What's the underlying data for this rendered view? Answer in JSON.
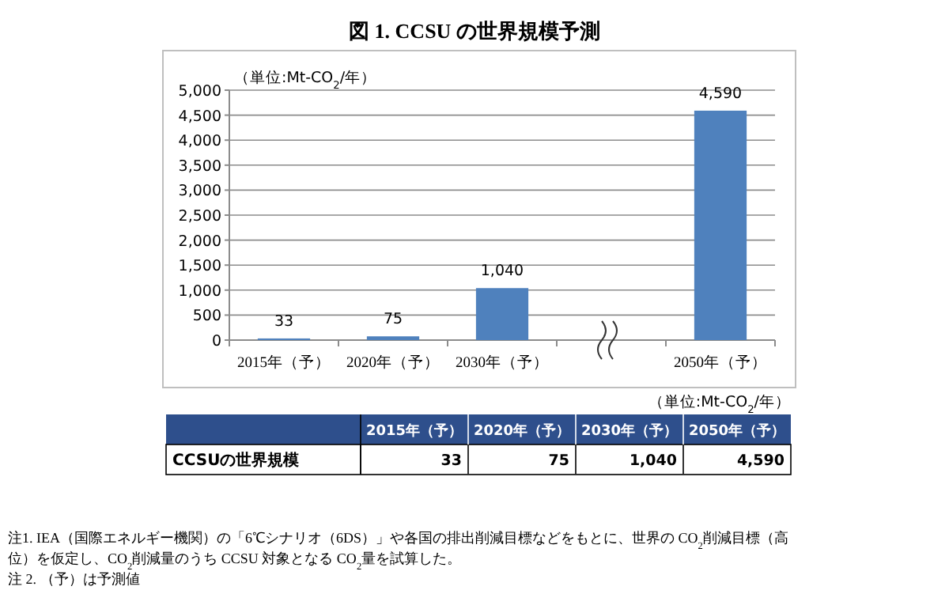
{
  "chart_data": {
    "type": "bar",
    "title": "図 1. CCSU の世界規模予測",
    "ylabel": "（単位:Mt-CO$_{2}$/年）",
    "categories": [
      "2015年（予）",
      "2020年（予）",
      "2030年（予）",
      null,
      "2050年（予）"
    ],
    "values": [
      33,
      75,
      1040,
      null,
      4590
    ],
    "color": "#4f81bd",
    "value_labels": [
      "33",
      "75",
      "1,040",
      null,
      "4,590"
    ],
    "ylim": [
      0,
      5000
    ],
    "yticks": [
      0,
      500,
      {
        "value": 1000,
        "label": "1,000"
      },
      {
        "value": 1500,
        "label": "1,500"
      },
      {
        "value": 2000,
        "label": "2,000"
      },
      {
        "value": 2500,
        "label": "2,500"
      },
      {
        "value": 3000,
        "label": "3,000"
      },
      {
        "value": 3500,
        "label": "3,500"
      },
      {
        "value": 4000,
        "label": "4,000"
      },
      {
        "value": 4500,
        "label": "4,500"
      },
      {
        "value": 5000,
        "label": "5,000"
      }
    ],
    "grid": "y",
    "annotations": [
      "（単位:Mt-CO$_{2}$/年）",
      "CCSUの世界規模",
      "注1. IEA（国際エネルギー機関）の「6℃シナリオ（6DS）」や各国の排出削減目標などをもとに、世界の CO$_{2}$削減目標（高",
      "位）を仮定し、CO$_{2}$削減量のうち CCSU 対象となる CO$_{2}$量を試算した。",
      "注 2. （予）は予測値"
    ]
  }
}
